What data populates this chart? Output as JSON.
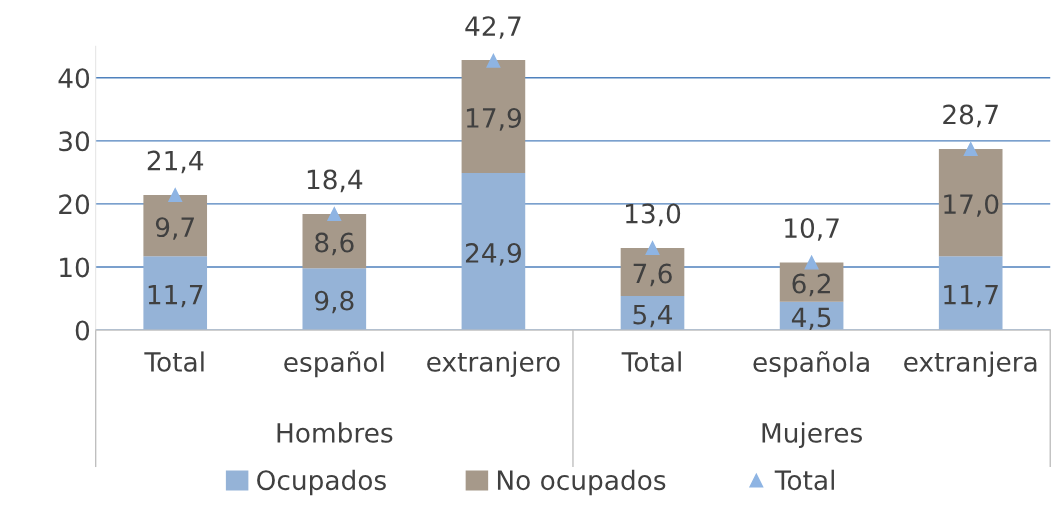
{
  "chart_data": {
    "type": "bar",
    "stacked": true,
    "categories": [
      "Total",
      "español",
      "extranjero",
      "Total",
      "española",
      "extranjera"
    ],
    "series": [
      {
        "name": "Ocupados",
        "color": "#95b3d7",
        "values": [
          11.7,
          9.8,
          24.9,
          5.4,
          4.5,
          11.7
        ],
        "value_labels": [
          "11,7",
          "9,8",
          "24,9",
          "5,4",
          "4,5",
          "11,7"
        ]
      },
      {
        "name": "No ocupados",
        "color": "#a6998a",
        "values": [
          9.7,
          8.6,
          17.9,
          7.6,
          6.2,
          17.0
        ],
        "value_labels": [
          "9,7",
          "8,6",
          "17,9",
          "7,6",
          "6,2",
          "17,0"
        ]
      },
      {
        "name": "Total",
        "type": "scatter",
        "color": "#8eb4e3",
        "marker": "triangle",
        "values": [
          21.4,
          18.4,
          42.7,
          13.0,
          10.7,
          28.7
        ],
        "value_labels": [
          "21,4",
          "18,4",
          "42,7",
          "13,0",
          "10,7",
          "28,7"
        ]
      }
    ],
    "ylim": [
      0,
      45
    ],
    "yticks": [
      0,
      10,
      20,
      30,
      40
    ],
    "grid": "y",
    "legend": "bottom",
    "annotations": [
      "Hombres",
      "Mujeres"
    ]
  }
}
